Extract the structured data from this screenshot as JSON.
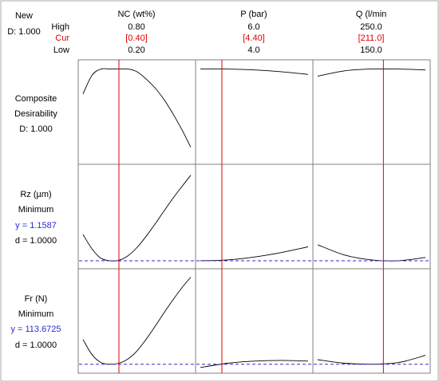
{
  "chart_data": {
    "type": "line",
    "title": "",
    "header": {
      "new_label": "New",
      "d_label": "D: 1.000",
      "row_labels": {
        "high": "High",
        "cur": "Cur",
        "low": "Low"
      }
    },
    "factors": [
      {
        "name": "NC (wt%)",
        "high": "0.80",
        "cur": "[0.40]",
        "low": "0.20",
        "low_value": 0.2,
        "high_value": 0.8,
        "cur_value": 0.4
      },
      {
        "name": "P (bar)",
        "high": "6.0",
        "cur": "[4.40]",
        "low": "4.0",
        "low_value": 4.0,
        "high_value": 6.0,
        "cur_value": 4.4
      },
      {
        "name": "Q (l/min",
        "high": "250.0",
        "cur": "[211.0]",
        "low": "150.0",
        "low_value": 150.0,
        "high_value": 250.0,
        "cur_value": 211.0
      }
    ],
    "rows": [
      {
        "key": "composite",
        "labels": [
          "Composite",
          "Desirability",
          "D: 1.000"
        ],
        "y_text": "",
        "d_text": "",
        "ylim": [
          0,
          1.05
        ],
        "reference_line": null,
        "curves": [
          {
            "factor": "NC (wt%)",
            "x": [
              0.2,
              0.25,
              0.3,
              0.35,
              0.4,
              0.45,
              0.5,
              0.55,
              0.6,
              0.65,
              0.7,
              0.75,
              0.8
            ],
            "y": [
              0.72,
              0.93,
              1.0,
              1.0,
              1.0,
              1.0,
              0.97,
              0.89,
              0.79,
              0.66,
              0.5,
              0.32,
              0.12
            ]
          },
          {
            "factor": "P (bar)",
            "x": [
              4.0,
              4.5,
              5.0,
              5.5,
              6.0
            ],
            "y": [
              1.0,
              1.0,
              0.99,
              0.97,
              0.94
            ]
          },
          {
            "factor": "Q (l/min",
            "x": [
              150,
              175,
              200,
              225,
              250
            ],
            "y": [
              0.92,
              0.98,
              1.0,
              1.0,
              0.99
            ]
          }
        ]
      },
      {
        "key": "rz",
        "labels": [
          "Rz (µm)",
          "Minimum"
        ],
        "y_text": "y = 1.1587",
        "d_text": "d = 1.0000",
        "ylim": [
          1.12,
          3.4
        ],
        "reference_line": 1.1587,
        "curves": [
          {
            "factor": "NC (wt%)",
            "x": [
              0.2,
              0.25,
              0.3,
              0.35,
              0.4,
              0.45,
              0.5,
              0.55,
              0.6,
              0.65,
              0.7,
              0.75,
              0.8
            ],
            "y": [
              1.8,
              1.45,
              1.22,
              1.16,
              1.17,
              1.28,
              1.48,
              1.75,
              2.05,
              2.37,
              2.68,
              2.97,
              3.25
            ]
          },
          {
            "factor": "P (bar)",
            "x": [
              4.0,
              4.5,
              5.0,
              5.5,
              6.0
            ],
            "y": [
              1.16,
              1.18,
              1.25,
              1.36,
              1.5
            ]
          },
          {
            "factor": "Q (l/min",
            "x": [
              150,
              175,
              200,
              225,
              250
            ],
            "y": [
              1.55,
              1.3,
              1.18,
              1.16,
              1.24
            ]
          }
        ]
      },
      {
        "key": "fr",
        "labels": [
          "Fr (N)",
          "Minimum"
        ],
        "y_text": "y = 113.6725",
        "d_text": "d = 1.0000",
        "ylim": [
          110,
          240
        ],
        "reference_line": 113.6725,
        "curves": [
          {
            "factor": "NC (wt%)",
            "x": [
              0.2,
              0.25,
              0.3,
              0.35,
              0.4,
              0.45,
              0.5,
              0.55,
              0.6,
              0.65,
              0.7,
              0.75,
              0.8
            ],
            "y": [
              148,
              127,
              116,
              113.7,
              115,
              121,
              132,
              148,
              166,
              185,
              203,
              220,
              235
            ]
          },
          {
            "factor": "P (bar)",
            "x": [
              4.0,
              4.5,
              5.0,
              5.5,
              6.0
            ],
            "y": [
              109,
              115,
              118,
              119,
              118
            ]
          },
          {
            "factor": "Q (l/min",
            "x": [
              150,
              175,
              200,
              225,
              250
            ],
            "y": [
              120,
              115,
              113.7,
              116,
              126
            ]
          }
        ]
      }
    ]
  }
}
